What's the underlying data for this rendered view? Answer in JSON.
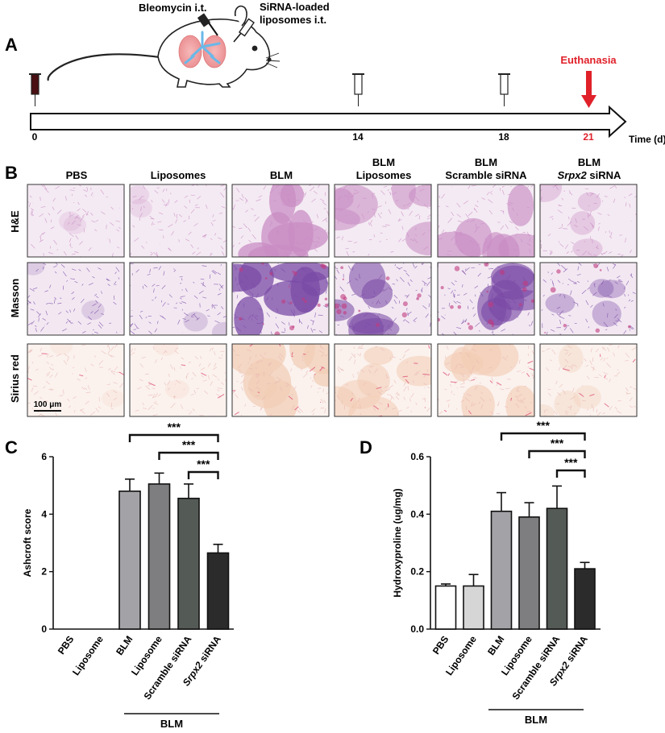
{
  "panel_a": {
    "label": "A",
    "bleomycin_label": "Bleomycin i.t.",
    "sirna_label_line1": "SiRNA-loaded",
    "sirna_label_line2": "liposomes i.t.",
    "euthanasia_label": "Euthanasia",
    "timeline_ticks": [
      "0",
      "14",
      "18",
      "21"
    ],
    "time_axis_label": "Time (d)",
    "accent_color": "#e0212a"
  },
  "panel_b": {
    "label": "B",
    "columns": [
      {
        "line1": "",
        "line2": "PBS",
        "italic_prefix": ""
      },
      {
        "line1": "",
        "line2": "Liposomes",
        "italic_prefix": ""
      },
      {
        "line1": "",
        "line2": "BLM",
        "italic_prefix": ""
      },
      {
        "line1": "BLM",
        "line2": "Liposomes",
        "italic_prefix": ""
      },
      {
        "line1": "BLM",
        "line2": "Scramble siRNA",
        "italic_prefix": ""
      },
      {
        "line1": "BLM",
        "line2": " siRNA",
        "italic_prefix": "Srpx2"
      }
    ],
    "rows": [
      "H&E",
      "Masson",
      "Sirius red"
    ],
    "scale_bar_label": "100 μm",
    "stain_colors": {
      "he_base": "#f4eaf3",
      "he_tissue": "#c98cc4",
      "masson_base": "#f3e8f2",
      "masson_tissue": "#7a4aa6",
      "masson_collagen": "#c23b7f",
      "sirius_base": "#fbf2ee",
      "sirius_tissue": "#f2cdb6",
      "sirius_fiber": "#dc3f6c"
    }
  },
  "chart_data": [
    {
      "panel": "C",
      "type": "bar",
      "categories": [
        "PBS",
        "Liposome",
        "BLM",
        "Liposome",
        "Scramble siRNA",
        "Srpx2 siRNA"
      ],
      "values": [
        0,
        0,
        4.8,
        5.05,
        4.55,
        2.65
      ],
      "errors": [
        0,
        0,
        0.42,
        0.38,
        0.5,
        0.3
      ],
      "bar_colors": [
        "#ffffff",
        "#ffffff",
        "#a3a3a7",
        "#7e7e80",
        "#545a56",
        "#2b2b2b"
      ],
      "ylabel": "Ashcroft score",
      "ylim": [
        0,
        6
      ],
      "yticks": [
        "0",
        "2",
        "4",
        "6"
      ],
      "group_label": "BLM",
      "significance": [
        {
          "from": 2,
          "to": 5,
          "label": "***"
        },
        {
          "from": 3,
          "to": 5,
          "label": "***"
        },
        {
          "from": 4,
          "to": 5,
          "label": "***"
        }
      ]
    },
    {
      "panel": "D",
      "type": "bar",
      "categories": [
        "PBS",
        "Liposome",
        "BLM",
        "Liposome",
        "Scramble siRNA",
        "Srpx2 siRNA"
      ],
      "values": [
        0.15,
        0.15,
        0.41,
        0.39,
        0.42,
        0.21
      ],
      "errors": [
        0.007,
        0.04,
        0.065,
        0.05,
        0.078,
        0.022
      ],
      "bar_colors": [
        "#ffffff",
        "#d6d6d6",
        "#a3a3a7",
        "#7e7e80",
        "#545a56",
        "#2b2b2b"
      ],
      "ylabel": "Hydroxyproline (ug/mg)",
      "ylim": [
        0,
        0.6
      ],
      "yticks": [
        "0.0",
        "0.2",
        "0.4",
        "0.6"
      ],
      "group_label": "BLM",
      "significance": [
        {
          "from": 2,
          "to": 5,
          "label": "***"
        },
        {
          "from": 3,
          "to": 5,
          "label": "***"
        },
        {
          "from": 4,
          "to": 5,
          "label": "***"
        }
      ]
    }
  ]
}
